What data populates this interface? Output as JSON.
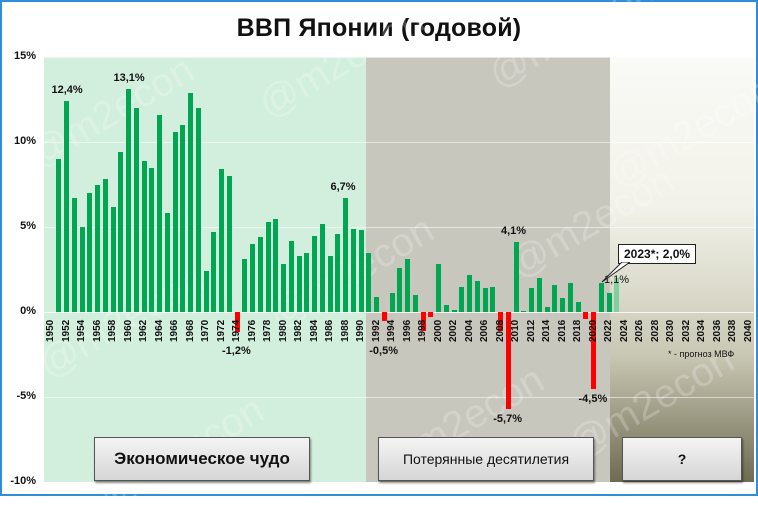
{
  "title": "ВВП Японии (годовой)",
  "watermark": "@m2econ",
  "footnote": "* - прогноз МВФ",
  "callout": "2023*; 2,0%",
  "eras": [
    {
      "label": "Экономическое чудо"
    },
    {
      "label": "Потерянные десятилетия"
    },
    {
      "label": "?"
    }
  ],
  "y_ticks": [
    "15%",
    "10%",
    "5%",
    "0%",
    "-5%",
    "-10%"
  ],
  "annotations": [
    {
      "text": "12,4%",
      "year": 1952,
      "pos": "above"
    },
    {
      "text": "13,1%",
      "year": 1960,
      "pos": "above"
    },
    {
      "text": "-1,2%",
      "year": 1974,
      "pos": "below"
    },
    {
      "text": "6,7%",
      "year": 1988,
      "pos": "above"
    },
    {
      "text": "-0,5%",
      "year": 1993,
      "pos": "below"
    },
    {
      "text": "4,1%",
      "year": 2010,
      "pos": "above"
    },
    {
      "text": "-5,7%",
      "year": 2009,
      "pos": "below"
    },
    {
      "text": "-4,5%",
      "year": 2020,
      "pos": "below"
    },
    {
      "text": "1,1%",
      "year": 2022,
      "pos": "above"
    }
  ],
  "colors": {
    "positive": "#00a651",
    "negative": "#ff0000",
    "forecast": "#7fcf9f"
  },
  "chart_data": {
    "type": "bar",
    "title": "ВВП Японии (годовой)",
    "xlabel": "",
    "ylabel": "",
    "ylim": [
      -10,
      15
    ],
    "y_tick_labels": [
      "15%",
      "10%",
      "5%",
      "0%",
      "-5%",
      "-10%"
    ],
    "x_tick_labels": [
      "1950",
      "1952",
      "1954",
      "1956",
      "1958",
      "1960",
      "1962",
      "1964",
      "1966",
      "1968",
      "1970",
      "1972",
      "1974",
      "1976",
      "1978",
      "1980",
      "1982",
      "1984",
      "1986",
      "1988",
      "1990",
      "1992",
      "1994",
      "1996",
      "1998",
      "2000",
      "2002",
      "2004",
      "2006",
      "2008",
      "2010",
      "2012",
      "2014",
      "2016",
      "2018",
      "2020",
      "2022",
      "2024",
      "2026",
      "2028",
      "2030",
      "2032",
      "2034",
      "2036",
      "2038",
      "2040"
    ],
    "x_range": [
      1950,
      2040
    ],
    "grid": true,
    "legend": "none",
    "regions": [
      {
        "label": "Экономическое чудо",
        "from": 1950,
        "to": 1991,
        "color": "#d2efdd"
      },
      {
        "label": "Потерянные десятилетия",
        "from": 1992,
        "to": 2023,
        "color": "#c8c7bd"
      },
      {
        "label": "?",
        "from": 2024,
        "to": 2040,
        "color": "gradient"
      }
    ],
    "categories": [
      1951,
      1952,
      1953,
      1954,
      1955,
      1956,
      1957,
      1958,
      1959,
      1960,
      1961,
      1962,
      1963,
      1964,
      1965,
      1966,
      1967,
      1968,
      1969,
      1970,
      1971,
      1972,
      1973,
      1974,
      1975,
      1976,
      1977,
      1978,
      1979,
      1980,
      1981,
      1982,
      1983,
      1984,
      1985,
      1986,
      1987,
      1988,
      1989,
      1990,
      1991,
      1992,
      1993,
      1994,
      1995,
      1996,
      1997,
      1998,
      1999,
      2000,
      2001,
      2002,
      2003,
      2004,
      2005,
      2006,
      2007,
      2008,
      2009,
      2010,
      2011,
      2012,
      2013,
      2014,
      2015,
      2016,
      2017,
      2018,
      2019,
      2020,
      2021,
      2022,
      2023
    ],
    "values": [
      9.0,
      12.4,
      6.7,
      5.0,
      7.0,
      7.5,
      7.8,
      6.2,
      9.4,
      13.1,
      12.0,
      8.9,
      8.5,
      11.6,
      5.8,
      10.6,
      11.0,
      12.9,
      12.0,
      2.4,
      4.7,
      8.4,
      8.0,
      -1.2,
      3.1,
      4.0,
      4.4,
      5.3,
      5.5,
      2.8,
      4.2,
      3.3,
      3.5,
      4.5,
      5.2,
      3.3,
      4.6,
      6.7,
      4.9,
      4.8,
      3.5,
      0.9,
      -0.5,
      1.1,
      2.6,
      3.1,
      1.0,
      -1.1,
      -0.3,
      2.8,
      0.4,
      0.1,
      1.5,
      2.2,
      1.8,
      1.4,
      1.5,
      -1.1,
      -5.7,
      4.1,
      0.02,
      1.4,
      2.0,
      0.3,
      1.6,
      0.8,
      1.7,
      0.6,
      -0.4,
      -4.5,
      1.7,
      1.1,
      2.0
    ],
    "forecast_years": [
      2023
    ],
    "annotations": [
      "12,4%",
      "13,1%",
      "-1,2%",
      "6,7%",
      "-0,5%",
      "4,1%",
      "-5,7%",
      "-4,5%",
      "1,1%",
      "2023*; 2,0%"
    ],
    "footnote": "* - прогноз МВФ"
  }
}
